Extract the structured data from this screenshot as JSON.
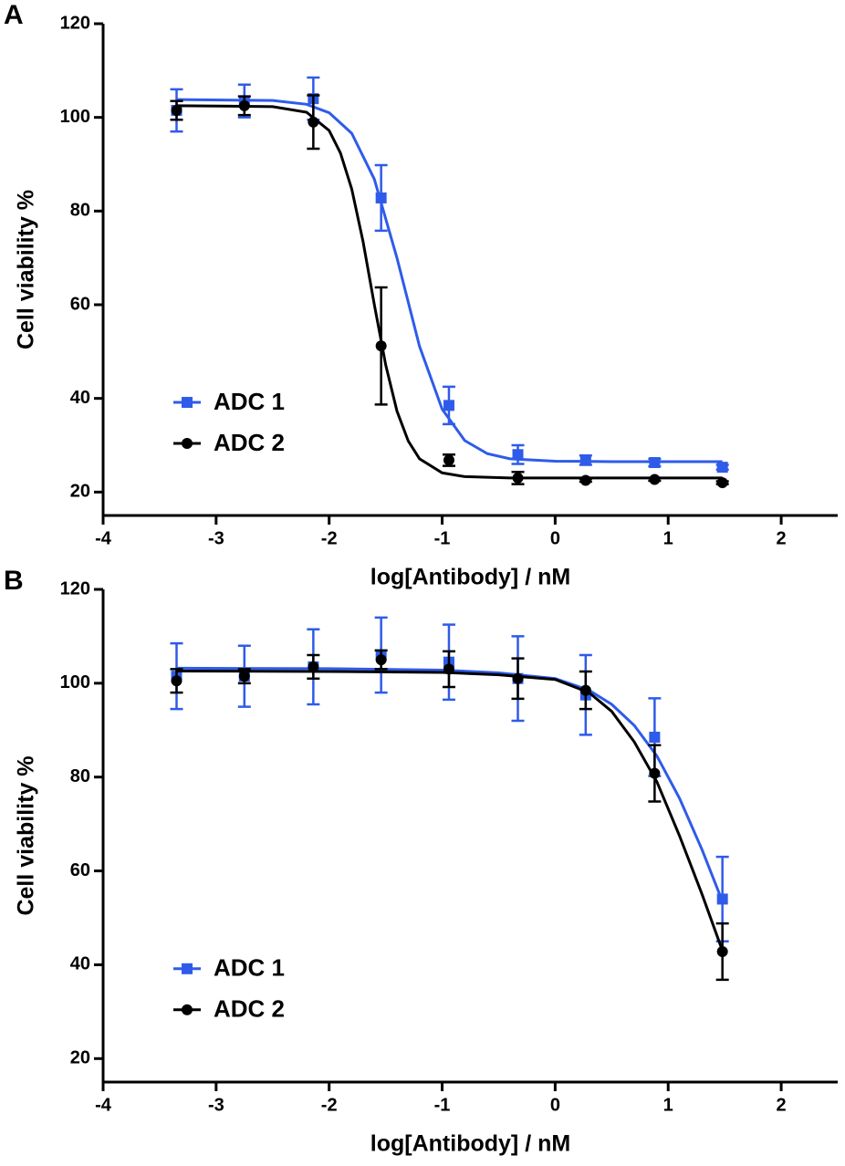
{
  "chart_data": [
    {
      "type": "scatter",
      "panel_label": "A",
      "xlabel": "log[Antibody] / nM",
      "ylabel": "Cell viability %",
      "xlim": [
        -4,
        2.5
      ],
      "ylim": [
        15,
        120
      ],
      "xticks": [
        -4,
        -3,
        -2,
        -1,
        0,
        1,
        2
      ],
      "yticks": [
        20,
        40,
        60,
        80,
        100,
        120
      ],
      "legend": "lower left",
      "series": [
        {
          "name": "ADC 1",
          "color": "#2f5bea",
          "marker": "square",
          "x": [
            -3.35,
            -2.75,
            -2.14,
            -1.54,
            -0.94,
            -0.33,
            0.27,
            0.88,
            1.48
          ],
          "values": [
            101.5,
            103.5,
            104,
            82.8,
            38.5,
            28,
            26.8,
            26.3,
            25.3
          ],
          "errors": [
            4.5,
            3.5,
            4.5,
            7,
            4,
            2,
            1,
            0.8,
            0.5
          ],
          "curve": {
            "x": [
              -3.35,
              -2.5,
              -2.2,
              -2.0,
              -1.8,
              -1.6,
              -1.4,
              -1.2,
              -1.0,
              -0.8,
              -0.6,
              -0.4,
              0,
              0.5,
              1.48
            ],
            "values": [
              103.8,
              103.6,
              102.8,
              101.0,
              96.6,
              86.8,
              70.0,
              51.1,
              37.7,
              31.0,
              28.2,
              27.1,
              26.6,
              26.5,
              26.5
            ]
          }
        },
        {
          "name": "ADC 2",
          "color": "#000000",
          "marker": "circle",
          "x": [
            -3.35,
            -2.75,
            -2.14,
            -1.54,
            -0.94,
            -0.33,
            0.27,
            0.88,
            1.48
          ],
          "values": [
            101.5,
            102.5,
            99,
            51.2,
            26.8,
            23,
            22.5,
            22.7,
            22
          ],
          "errors": [
            2,
            2,
            5.7,
            12.5,
            1.2,
            1.3,
            0.3,
            0.3,
            0.3
          ],
          "curve": {
            "x": [
              -3.35,
              -2.5,
              -2.2,
              -2.0,
              -1.9,
              -1.8,
              -1.7,
              -1.6,
              -1.5,
              -1.4,
              -1.3,
              -1.2,
              -1.0,
              -0.8,
              -0.4,
              1.48
            ],
            "values": [
              102.5,
              102.3,
              101.1,
              97.2,
              92.4,
              84.7,
              73.5,
              60.0,
              47.2,
              37.3,
              30.9,
              27.1,
              24.1,
              23.3,
              23.0,
              23.0
            ]
          }
        }
      ]
    },
    {
      "type": "scatter",
      "panel_label": "B",
      "xlabel": "log[Antibody] / nM",
      "ylabel": "Cell viability %",
      "xlim": [
        -4,
        2.5
      ],
      "ylim": [
        15,
        120
      ],
      "xticks": [
        -4,
        -3,
        -2,
        -1,
        0,
        1,
        2
      ],
      "yticks": [
        20,
        40,
        60,
        80,
        100,
        120
      ],
      "legend": "lower left",
      "series": [
        {
          "name": "ADC 1",
          "color": "#2f5bea",
          "marker": "square",
          "x": [
            -3.35,
            -2.75,
            -2.14,
            -1.54,
            -0.94,
            -0.33,
            0.27,
            0.88,
            1.48
          ],
          "values": [
            101.5,
            101.5,
            103.5,
            106,
            104.5,
            101,
            97.5,
            88.5,
            54
          ],
          "errors": [
            7,
            6.5,
            8,
            8,
            8,
            9,
            8.5,
            8.3,
            9
          ],
          "curve": {
            "x": [
              -3.35,
              -2,
              -1,
              -0.5,
              0,
              0.3,
              0.5,
              0.7,
              0.9,
              1.1,
              1.3,
              1.48
            ],
            "values": [
              103.2,
              103.1,
              102.8,
              102.2,
              101,
              98.5,
              95.5,
              91,
              84.5,
              75.5,
              64.5,
              53.5
            ]
          }
        },
        {
          "name": "ADC 2",
          "color": "#000000",
          "marker": "circle",
          "x": [
            -3.35,
            -2.75,
            -2.14,
            -1.54,
            -0.94,
            -0.33,
            0.27,
            0.88,
            1.48
          ],
          "values": [
            100.5,
            101.5,
            103.5,
            105,
            103,
            101,
            98.5,
            80.8,
            42.8
          ],
          "errors": [
            2.5,
            1.5,
            2.5,
            2,
            3.8,
            4.3,
            4,
            6,
            6
          ],
          "curve": {
            "x": [
              -3.35,
              -2,
              -1,
              -0.5,
              0,
              0.3,
              0.5,
              0.7,
              0.9,
              1.1,
              1.3,
              1.48
            ],
            "values": [
              102.6,
              102.5,
              102.3,
              101.8,
              100.8,
              98,
              94,
              87.5,
              79,
              67.5,
              55,
              43
            ]
          }
        }
      ]
    }
  ]
}
